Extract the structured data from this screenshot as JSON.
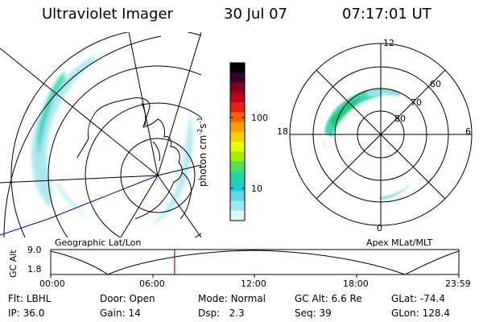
{
  "header": {
    "instrument": "Ultraviolet Imager",
    "date": "30 Jul 07",
    "time": "07:17:01 UT"
  },
  "left_panel": {
    "label": "Geographic Lat/Lon"
  },
  "right_panel": {
    "label": "Apex MLat/MLT",
    "mlt_labels": {
      "top": "12",
      "left": "18",
      "right": "6",
      "bottom": "0"
    },
    "mlat_labels": [
      "60",
      "70",
      "80"
    ]
  },
  "colorbar": {
    "unit_text": "photon cm",
    "unit_exp1": "-2",
    "unit_mid": "s",
    "unit_exp2": "-1",
    "ticks": [
      "100",
      "10"
    ],
    "colors": [
      "#000000",
      "#3a0030",
      "#800020",
      "#c0001a",
      "#e82010",
      "#ff6000",
      "#ffa000",
      "#ffd000",
      "#e8ff00",
      "#a0f000",
      "#50e060",
      "#20d8a0",
      "#20d0d0",
      "#60d8e8",
      "#a0e8f0",
      "#e0f8fc"
    ]
  },
  "altitude_plot": {
    "ylabel": "GC Alt",
    "y_ticks": [
      "9.0",
      "1.8"
    ],
    "x_ticks": [
      "00:00",
      "06:00",
      "12:00",
      "18:00",
      "23:59"
    ],
    "marker_time": "07:17",
    "marker_color": "#d00000"
  },
  "info": {
    "filter_label": "Flt:",
    "filter_value": "LBHL",
    "door_label": "Door:",
    "door_value": "Open",
    "mode_label": "Mode:",
    "mode_value": "Normal",
    "gcalt_label": "GC Alt:",
    "gcalt_value": "6.6 Re",
    "glat_label": "GLat:",
    "glat_value": "-74.4",
    "ip_label": "IP:",
    "ip_value": "36.0",
    "gain_label": "Gain:",
    "gain_value": "14",
    "dsp_label": "Dsp:",
    "dsp_value": "2.3",
    "seq_label": "Seq:",
    "seq_value": "39",
    "glon_label": "GLon:",
    "glon_value": "128.4"
  }
}
